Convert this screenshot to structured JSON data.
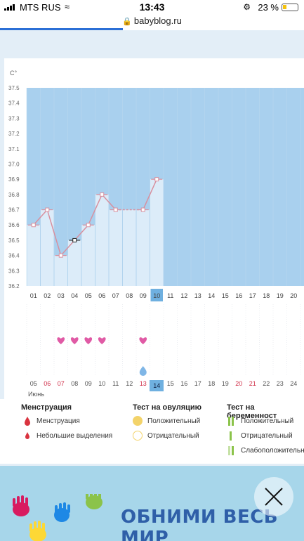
{
  "status_bar": {
    "carrier": "MTS RUS",
    "time": "13:43",
    "battery_percent": "23 %"
  },
  "browser": {
    "url": "babyblog.ru"
  },
  "chart": {
    "y_unit": "C°",
    "y_ticks": [
      "37.5",
      "37.4",
      "37.3",
      "37.2",
      "37.1",
      "37.0",
      "36.9",
      "36.8",
      "36.7",
      "36.6",
      "36.5",
      "36.4",
      "36.3",
      "36.2"
    ],
    "cycle_days": [
      "01",
      "02",
      "03",
      "04",
      "05",
      "06",
      "07",
      "08",
      "09",
      "10",
      "11",
      "12",
      "13",
      "14",
      "15",
      "16",
      "17",
      "18",
      "19",
      "20"
    ],
    "highlighted_cycle_day": "10",
    "month_label": "Июнь",
    "calendar_dates": [
      "05",
      "06",
      "07",
      "08",
      "09",
      "10",
      "11",
      "12",
      "13",
      "14",
      "15",
      "16",
      "17",
      "18",
      "19",
      "20",
      "21",
      "22",
      "23",
      "24"
    ],
    "weekend_dates": [
      "06",
      "07",
      "13",
      "20",
      "21"
    ],
    "highlighted_date": "14"
  },
  "chart_data": {
    "type": "line",
    "ylabel": "C°",
    "ylim": [
      36.2,
      37.5
    ],
    "categories": [
      "01",
      "02",
      "03",
      "04",
      "05",
      "06",
      "07",
      "08",
      "09",
      "10"
    ],
    "values": [
      36.6,
      36.7,
      36.4,
      36.5,
      36.6,
      36.8,
      36.7,
      null,
      36.7,
      36.9
    ],
    "gap_day": "08",
    "menstruation_days": [
      "03",
      "04",
      "05",
      "06",
      "09"
    ],
    "ovulation_test_day": "09"
  },
  "legend": {
    "menstruation": {
      "title": "Менструация",
      "items": [
        "Менструация",
        "Небольшие выделения"
      ]
    },
    "ovulation_test": {
      "title": "Тест на овуляцию",
      "items": [
        "Положительный",
        "Отрицательный"
      ]
    },
    "pregnancy_test": {
      "title": "Тест на беременност",
      "items": [
        "Положительный",
        "Отрицательный",
        "Слабоположительн"
      ]
    }
  },
  "banner": {
    "slogan": "ОБНИМИ ВЕСЬ МИР"
  },
  "colors": {
    "chart_fill": "#a9d0ee",
    "bar": "#dcecf9",
    "line": "#d8909f",
    "heart": "#e05aa5",
    "drop": "#d9333f",
    "ovulation_positive": "#f3d36a",
    "pregnancy_positive": "#8bc34a"
  }
}
